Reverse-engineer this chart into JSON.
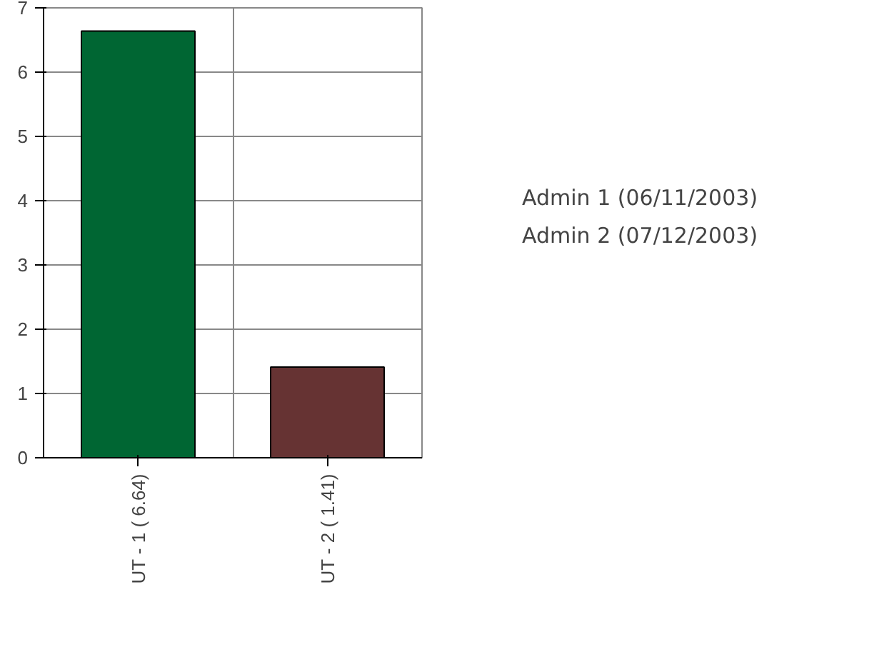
{
  "chart_data": {
    "type": "bar",
    "categories": [
      "UT - 1 ( 6.64)",
      "UT - 2 ( 1.41)"
    ],
    "values": [
      6.64,
      1.41
    ],
    "colors": [
      "#006633",
      "#663333"
    ],
    "ylim": [
      0,
      7
    ],
    "yticks": [
      0,
      1,
      2,
      3,
      4,
      5,
      6,
      7
    ],
    "grid": true,
    "annotations": [
      "Admin 1 (06/11/2003)",
      "Admin 2 (07/12/2003)"
    ]
  }
}
